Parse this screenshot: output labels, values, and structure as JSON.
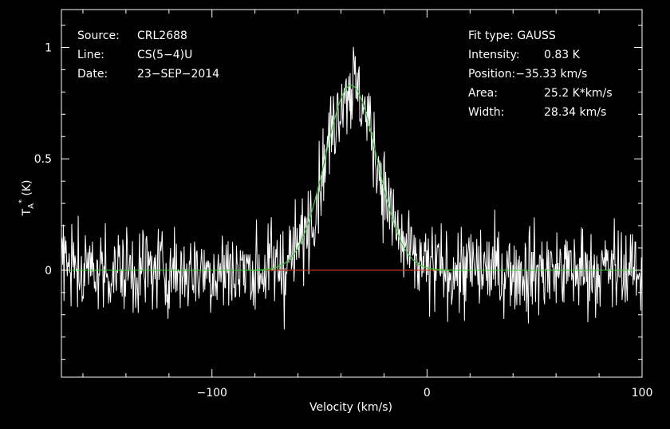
{
  "chart_data": {
    "type": "line",
    "xlabel": "Velocity (km/s)",
    "ylabel": "T_A^* (K)",
    "xlim": [
      -170,
      100
    ],
    "ylim": [
      -0.48,
      1.17
    ],
    "x_ticks": [
      -100,
      0,
      100
    ],
    "x_tick_labels": [
      "−100",
      "0",
      "100"
    ],
    "y_ticks": [
      0,
      0.5,
      1
    ],
    "y_tick_labels": [
      "0",
      "0.5",
      "1"
    ],
    "series": [
      {
        "kind": "spectrum",
        "color": "#ffffff",
        "x_start": -170,
        "x_end": 100,
        "n_channels": 900,
        "rms_noise": 0.1,
        "line_center": -35.33,
        "line_peak": 0.83,
        "line_fwhm": 28.34
      },
      {
        "kind": "gaussian-fit",
        "color": "#33cc33",
        "center": -35.33,
        "peak": 0.83,
        "fwhm": 28.34
      },
      {
        "kind": "baseline-window",
        "color": "#dd2222",
        "x_range": [
          -75,
          5
        ],
        "y": 0
      }
    ]
  },
  "info": {
    "source_label": "Source:",
    "source_value": "CRL2688",
    "line_label": "Line:",
    "line_value": "CS(5−4)U",
    "date_label": "Date:",
    "date_value": "23−SEP−2014"
  },
  "fit": {
    "type_label": "Fit type:",
    "type_value": "GAUSS",
    "intensity_label": "Intensity:",
    "intensity_value": "0.83 K",
    "position_label": "Position:",
    "position_value": "−35.33 km/s",
    "area_label": "Area:",
    "area_value": "25.2 K*km/s",
    "width_label": "Width:",
    "width_value": "28.34 km/s"
  }
}
